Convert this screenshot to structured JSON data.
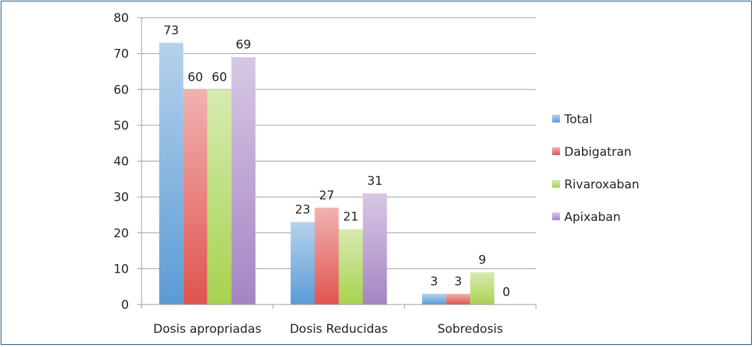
{
  "chart_data": {
    "type": "bar",
    "categories": [
      "Dosis apropriadas",
      "Dosis Reducidas",
      "Sobredosis"
    ],
    "series": [
      {
        "name": "Total",
        "values": [
          73,
          23,
          3
        ],
        "color": "#5b9bd5"
      },
      {
        "name": "Dabigatran",
        "values": [
          60,
          27,
          3
        ],
        "color": "#e0534f"
      },
      {
        "name": "Rivaroxaban",
        "values": [
          60,
          21,
          9
        ],
        "color": "#a7d24f"
      },
      {
        "name": "Apixaban",
        "values": [
          69,
          31,
          0
        ],
        "color": "#a584c4"
      }
    ],
    "ylim": [
      0,
      80
    ],
    "yticks": [
      0,
      10,
      20,
      30,
      40,
      50,
      60,
      70,
      80
    ],
    "grid": true,
    "legend_position": "right",
    "title": "",
    "xlabel": "",
    "ylabel": ""
  }
}
